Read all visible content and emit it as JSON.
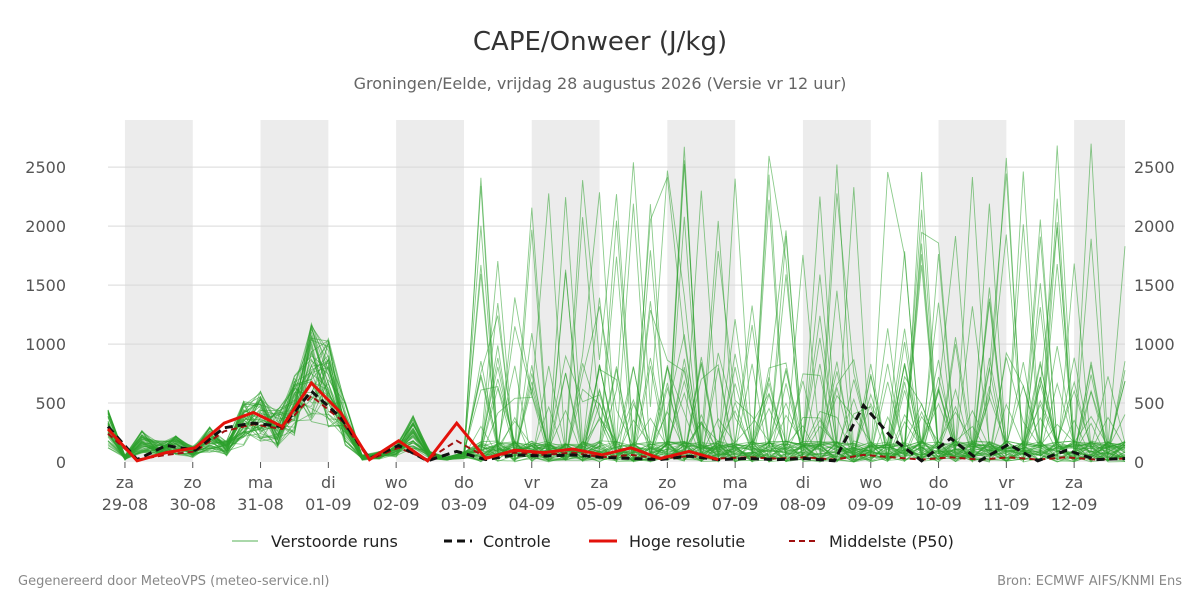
{
  "chart_data": {
    "type": "line",
    "title": "CAPE/Onweer (J/kg)",
    "subtitle": "Groningen/Eelde, vrijdag 28 augustus 2026 (Versie vr 12 uur)",
    "ylim": [
      0,
      2900
    ],
    "yticks": [
      0,
      500,
      1000,
      1500,
      2000,
      2500
    ],
    "x_start": "2026-08-28T12:00",
    "x_end": "2026-09-12T12:00",
    "x_tick_days": [
      {
        "weekday": "za",
        "date": "29-08"
      },
      {
        "weekday": "zo",
        "date": "30-08"
      },
      {
        "weekday": "ma",
        "date": "31-08"
      },
      {
        "weekday": "di",
        "date": "01-09"
      },
      {
        "weekday": "wo",
        "date": "02-09"
      },
      {
        "weekday": "do",
        "date": "03-09"
      },
      {
        "weekday": "vr",
        "date": "04-09"
      },
      {
        "weekday": "za",
        "date": "05-09"
      },
      {
        "weekday": "zo",
        "date": "06-09"
      },
      {
        "weekday": "ma",
        "date": "07-09"
      },
      {
        "weekday": "di",
        "date": "08-09"
      },
      {
        "weekday": "wo",
        "date": "09-09"
      },
      {
        "weekday": "do",
        "date": "10-09"
      },
      {
        "weekday": "vr",
        "date": "11-09"
      },
      {
        "weekday": "za",
        "date": "12-09"
      }
    ],
    "grid": true,
    "legend_position": "bottom",
    "colors": {
      "ensemble": "#2ca02c",
      "control": "#111111",
      "hires": "#e3120b",
      "median": "#a01010",
      "band": "#ececec",
      "grid": "#d9d9d9"
    },
    "series": [
      {
        "name": "Hoge resolutie",
        "x": [
          "2026-08-28T12:00",
          "2026-08-29T00:00",
          "2026-08-29T12:00",
          "2026-08-30T00:00",
          "2026-08-30T12:00",
          "2026-08-31T00:00",
          "2026-08-31T12:00",
          "2026-09-01T00:00",
          "2026-09-01T12:00",
          "2026-09-02T00:00",
          "2026-09-02T12:00",
          "2026-09-03T00:00",
          "2026-09-03T12:00",
          "2026-09-04T00:00",
          "2026-09-04T12:00",
          "2026-09-05T00:00",
          "2026-09-05T12:00",
          "2026-09-06T00:00",
          "2026-09-06T12:00",
          "2026-09-07T00:00",
          "2026-09-07T12:00",
          "2026-09-08T00:00"
        ],
        "values": [
          280,
          10,
          80,
          120,
          330,
          420,
          300,
          670,
          420,
          20,
          180,
          10,
          330,
          30,
          100,
          80,
          110,
          60,
          120,
          30,
          90,
          20
        ]
      },
      {
        "name": "Controle",
        "values": [
          300,
          20,
          140,
          100,
          290,
          330,
          300,
          600,
          380,
          30,
          140,
          10,
          90,
          20,
          60,
          50,
          60,
          40,
          30,
          20,
          50,
          20,
          30,
          20,
          30,
          10,
          480,
          200,
          10,
          200,
          10,
          150,
          10,
          100,
          20,
          30
        ]
      },
      {
        "name": "Middelste (P50)",
        "values": [
          240,
          20,
          60,
          90,
          260,
          320,
          280,
          560,
          360,
          20,
          120,
          20,
          180,
          40,
          80,
          60,
          80,
          40,
          60,
          30,
          50,
          30,
          40,
          30,
          40,
          20,
          60,
          40,
          20,
          40,
          20,
          40,
          20,
          40,
          20,
          30
        ]
      },
      {
        "name": "Verstoorde runs",
        "count": 50
      }
    ]
  },
  "legend": {
    "ensemble": "Verstoorde runs",
    "control": "Controle",
    "hires": "Hoge resolutie",
    "median": "Middelste (P50)"
  },
  "footer": {
    "left": "Gegenereerd door MeteoVPS (meteo-service.nl)",
    "right": "Bron: ECMWF AIFS/KNMI Ens"
  }
}
